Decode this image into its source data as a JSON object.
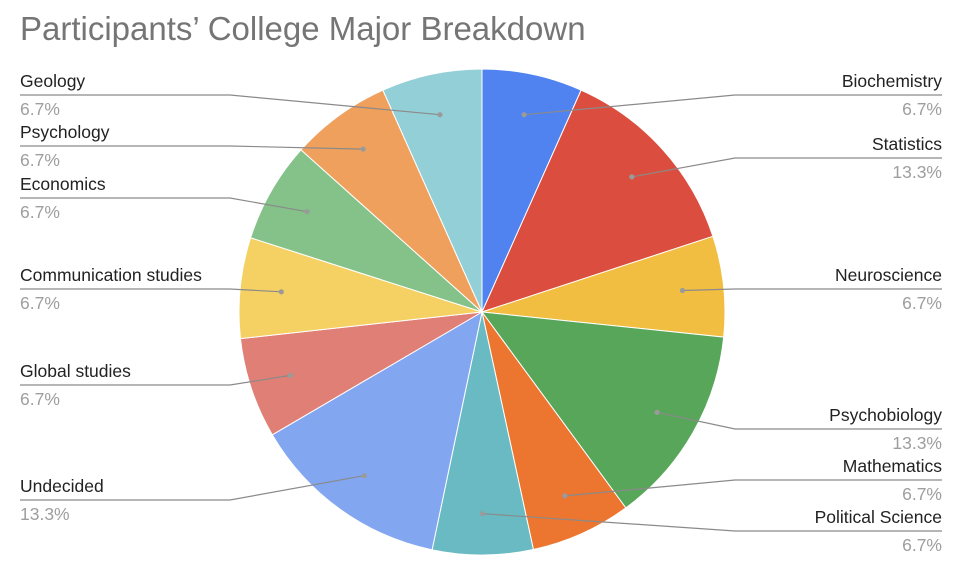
{
  "chart_data": {
    "type": "pie",
    "title": "Participants’ College Major Breakdown",
    "legend": "labels beside slices",
    "slices": [
      {
        "label": "Biochemistry",
        "value": 6.7,
        "pct_label": "6.7%",
        "color": "#5083f0"
      },
      {
        "label": "Statistics",
        "value": 13.3,
        "pct_label": "13.3%",
        "color": "#db4e3f"
      },
      {
        "label": "Neuroscience",
        "value": 6.7,
        "pct_label": "6.7%",
        "color": "#f2be42"
      },
      {
        "label": "Psychobiology",
        "value": 13.3,
        "pct_label": "13.3%",
        "color": "#58a65a"
      },
      {
        "label": "Mathematics",
        "value": 6.7,
        "pct_label": "6.7%",
        "color": "#ec7630"
      },
      {
        "label": "Political Science",
        "value": 6.7,
        "pct_label": "6.7%",
        "color": "#69bac2"
      },
      {
        "label": "Undecided",
        "value": 13.3,
        "pct_label": "13.3%",
        "color": "#82a7f0"
      },
      {
        "label": "Global studies",
        "value": 6.7,
        "pct_label": "6.7%",
        "color": "#e07f75"
      },
      {
        "label": "Communication studies",
        "value": 6.7,
        "pct_label": "6.7%",
        "color": "#f5d164"
      },
      {
        "label": "Economics",
        "value": 6.7,
        "pct_label": "6.7%",
        "color": "#85c289"
      },
      {
        "label": "Psychology",
        "value": 6.7,
        "pct_label": "6.7%",
        "color": "#f0a05d"
      },
      {
        "label": "Geology",
        "value": 6.7,
        "pct_label": "6.7%",
        "color": "#93cfd6"
      }
    ]
  }
}
